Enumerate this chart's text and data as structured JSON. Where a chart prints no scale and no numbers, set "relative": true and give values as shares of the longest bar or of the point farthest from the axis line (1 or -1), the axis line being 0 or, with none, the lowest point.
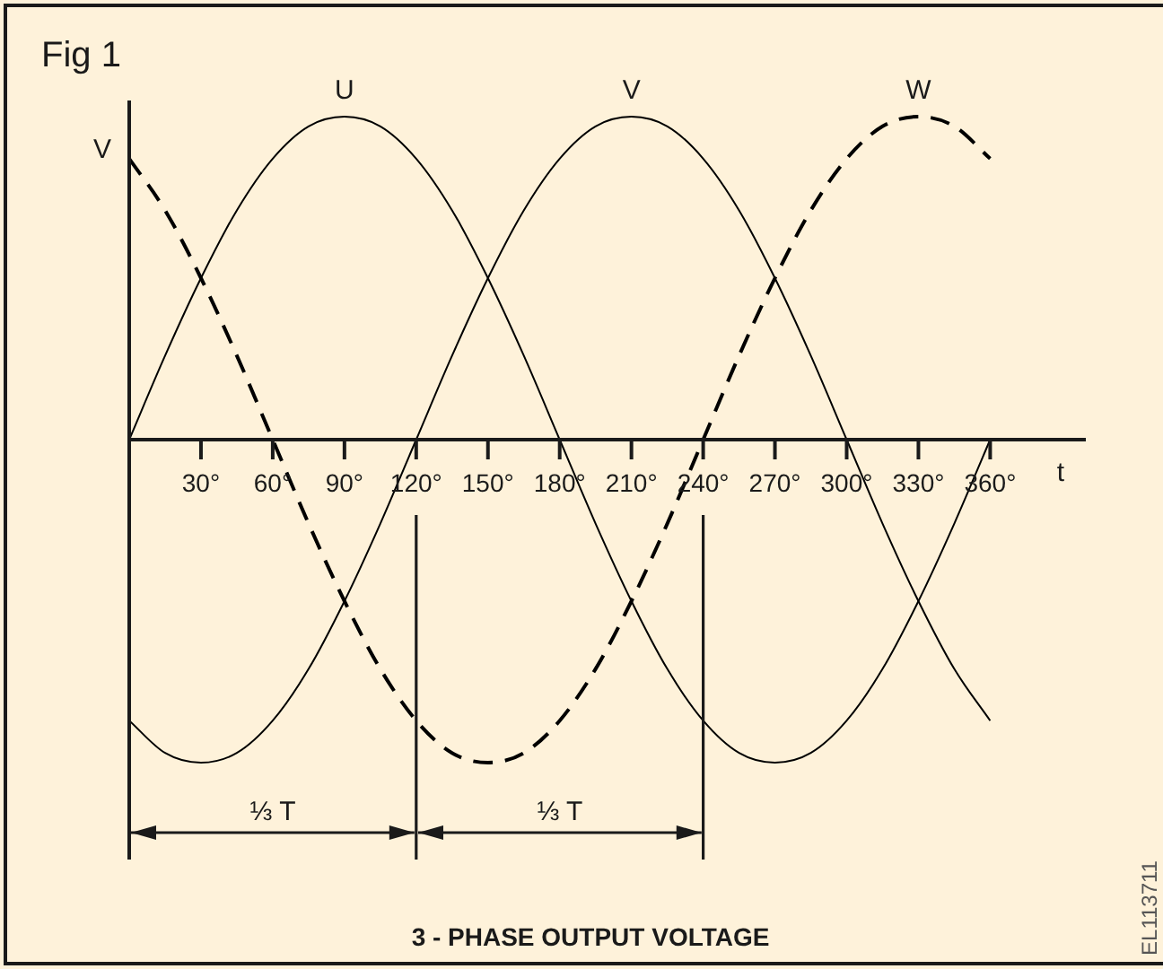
{
  "chart_data": {
    "type": "line",
    "title": "Fig 1",
    "xlabel": "t",
    "ylabel": "V",
    "x": [
      0,
      15,
      30,
      45,
      60,
      75,
      90,
      105,
      120,
      135,
      150,
      165,
      180,
      195,
      210,
      225,
      240,
      255,
      270,
      285,
      300,
      315,
      330,
      345,
      360
    ],
    "xlim": [
      0,
      400
    ],
    "xticks": [
      {
        "value": 30,
        "label": "30°"
      },
      {
        "value": 60,
        "label": "60°"
      },
      {
        "value": 90,
        "label": "90°"
      },
      {
        "value": 120,
        "label": "120°"
      },
      {
        "value": 150,
        "label": "150°"
      },
      {
        "value": 180,
        "label": "180°"
      },
      {
        "value": 210,
        "label": "210°"
      },
      {
        "value": 240,
        "label": "240°"
      },
      {
        "value": 270,
        "label": "270°"
      },
      {
        "value": 300,
        "label": "300°"
      },
      {
        "value": 330,
        "label": "330°"
      },
      {
        "value": 360,
        "label": "360°"
      }
    ],
    "relative": true,
    "series": [
      {
        "name": "U",
        "color": "#000000",
        "values": [
          0,
          0.26,
          0.5,
          0.71,
          0.87,
          0.97,
          1,
          0.97,
          0.87,
          0.71,
          0.5,
          0.26,
          0,
          -0.26,
          -0.5,
          -0.71,
          -0.87,
          -0.97,
          -1,
          -0.97,
          -0.87,
          -0.71,
          -0.5,
          -0.26,
          0
        ]
      },
      {
        "name": "V",
        "color": "#000000",
        "values": [
          -0.87,
          -0.97,
          -1,
          -0.97,
          -0.87,
          -0.71,
          -0.5,
          -0.26,
          0,
          0.26,
          0.5,
          0.71,
          0.87,
          0.97,
          1,
          0.97,
          0.87,
          0.71,
          0.5,
          0.26,
          0,
          -0.26,
          -0.5,
          -0.71,
          -0.87
        ]
      },
      {
        "name": "W",
        "color": "#000000",
        "line_style": "dashed",
        "values": [
          0.87,
          0.71,
          0.5,
          0.26,
          0,
          -0.26,
          -0.5,
          -0.71,
          -0.87,
          -0.97,
          -1,
          -0.97,
          -0.87,
          -0.71,
          -0.5,
          -0.26,
          0,
          0.26,
          0.5,
          0.71,
          0.87,
          0.97,
          1,
          0.97,
          0.87
        ]
      }
    ],
    "ref_lines": [
      {
        "axis": "x",
        "value": 120
      },
      {
        "axis": "x",
        "value": 240
      }
    ],
    "annotations": [
      "⅓ T",
      "⅓ T",
      "3 - PHASE OUTPUT VOLTAGE",
      "EL113711"
    ],
    "legend": false,
    "grid": false,
    "marker": "none",
    "tick_labels": "x"
  }
}
